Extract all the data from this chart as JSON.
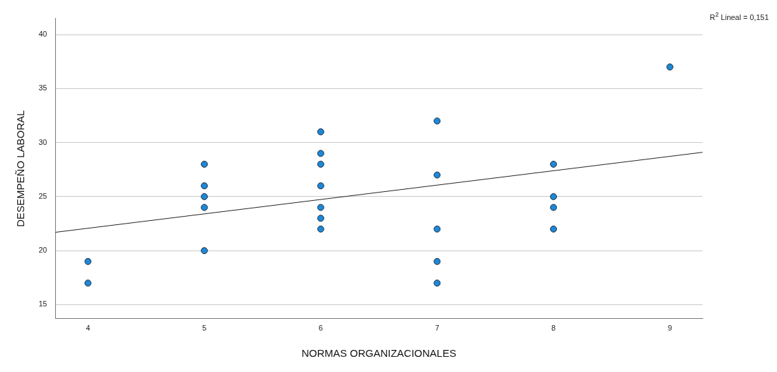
{
  "chart_data": {
    "type": "scatter",
    "xlabel": "NORMAS ORGANIZACIONALES",
    "ylabel": "DESEMPEÑO LABORAL",
    "annotations": [
      "R$^{2}$ Lineal = 0,151"
    ],
    "series": [
      {
        "color": "#1e88d8",
        "marker": "circle",
        "x": [
          4,
          4,
          5,
          5,
          5,
          5,
          5,
          6,
          6,
          6,
          6,
          6,
          6,
          6,
          7,
          7,
          7,
          7,
          7,
          8,
          8,
          8,
          8,
          9
        ],
        "values": [
          19,
          17,
          28,
          26,
          25,
          24,
          20,
          31,
          29,
          28,
          26,
          24,
          23,
          22,
          32,
          27,
          22,
          19,
          17,
          28,
          25,
          24,
          22,
          37
        ]
      },
      {
        "type": "line",
        "color": "#222222",
        "x": [
          3.72,
          9.28
        ],
        "values": [
          21.7,
          29.1
        ]
      }
    ],
    "xlim": [
      3.72,
      9.28
    ],
    "xticks": [
      4,
      5,
      6,
      7,
      8,
      9
    ],
    "ylim": [
      13.7,
      41.5
    ],
    "yticks": [
      15,
      20,
      25,
      30,
      35,
      40
    ],
    "grid": "y",
    "legend": false
  }
}
